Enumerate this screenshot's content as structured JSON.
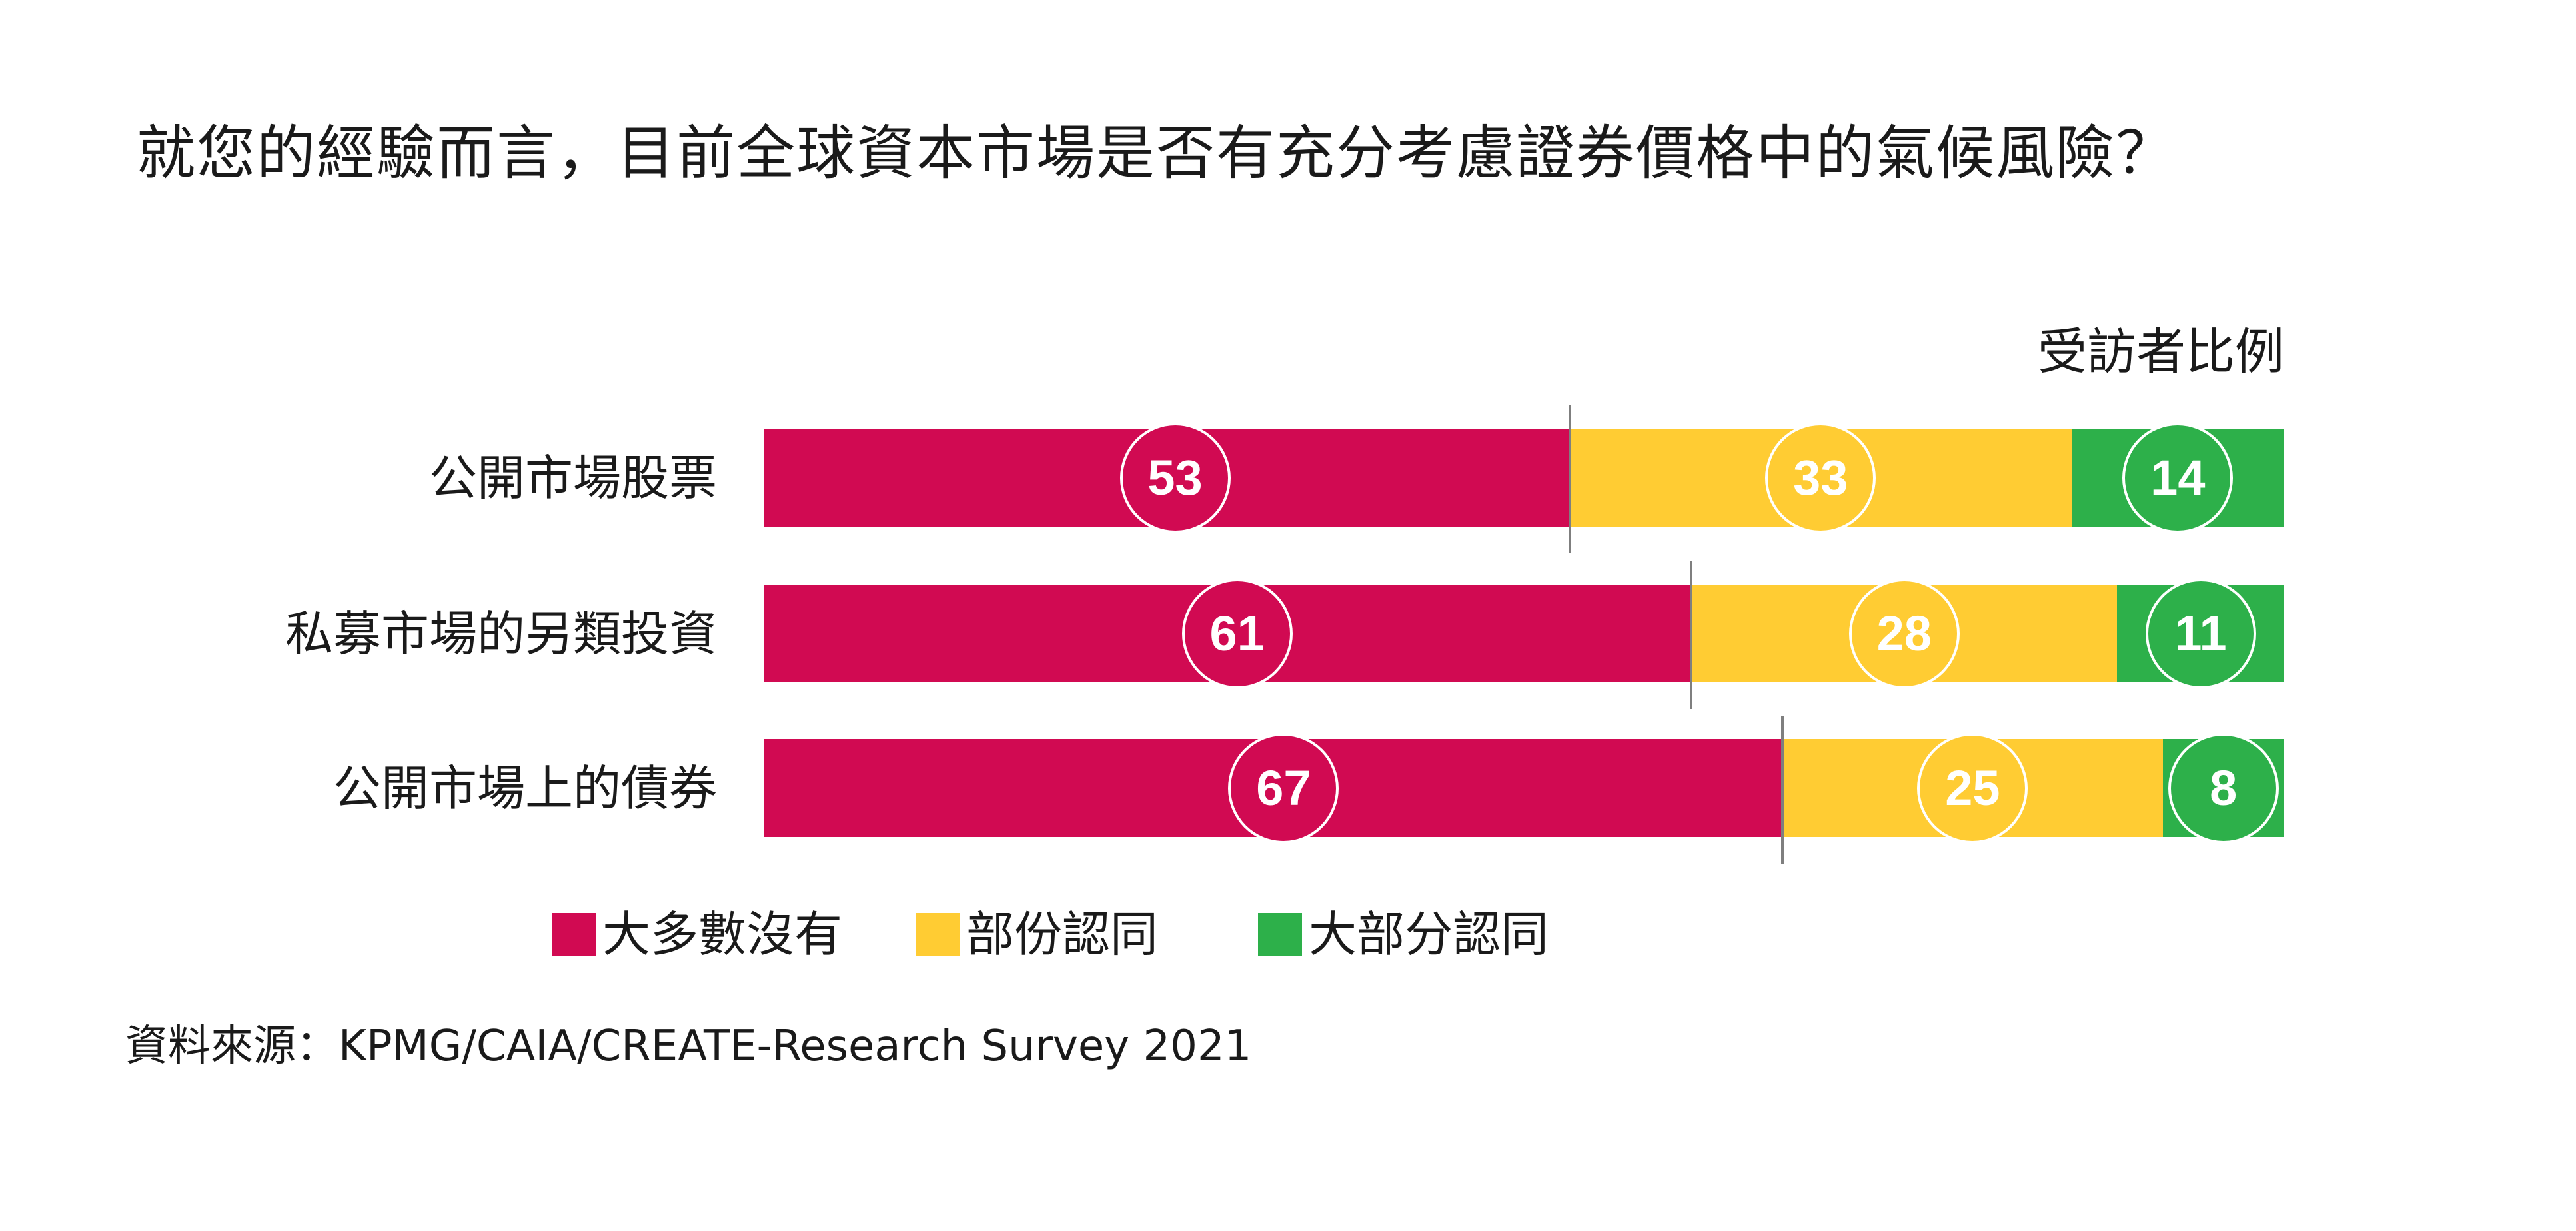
{
  "title": "就您的經驗而言，目前全球資本市場是否有充分考慮證券價格中的氣候風險？",
  "unit_label": "受訪者比例",
  "colors": {
    "mostly_no": "#D10A52",
    "partially_agree": "#FFCC33",
    "mostly_agree": "#2DB04A",
    "divider": "#7F7F7F"
  },
  "rows": [
    {
      "label": "公開市場股票",
      "values": [
        "53",
        "33",
        "14"
      ]
    },
    {
      "label": "私募市場的另類投資",
      "values": [
        "61",
        "28",
        "11"
      ]
    },
    {
      "label": "公開市場上的債券",
      "values": [
        "67",
        "25",
        "8"
      ]
    }
  ],
  "legend": [
    {
      "label": "大多數沒有",
      "color": "#D10A52"
    },
    {
      "label": "部份認同",
      "color": "#FFCC33"
    },
    {
      "label": "大部分認同",
      "color": "#2DB04A"
    }
  ],
  "source": "資料來源：KPMG/CAIA/CREATE-Research Survey 2021",
  "chart_data": {
    "type": "bar",
    "orientation": "horizontal",
    "stacked": true,
    "title": "就您的經驗而言，目前全球資本市場是否有充分考慮證券價格中的氣候風險？",
    "xlabel": "受訪者比例",
    "ylabel": "",
    "xlim": [
      0,
      100
    ],
    "grid": false,
    "legend_position": "bottom",
    "categories": [
      "公開市場股票",
      "私募市場的另類投資",
      "公開市場上的債券"
    ],
    "series": [
      {
        "name": "大多數沒有",
        "color": "#D10A52",
        "values": [
          53,
          61,
          67
        ]
      },
      {
        "name": "部份認同",
        "color": "#FFCC33",
        "values": [
          33,
          28,
          25
        ]
      },
      {
        "name": "大部分認同",
        "color": "#2DB04A",
        "values": [
          14,
          11,
          8
        ]
      }
    ],
    "annotations": [
      "資料來源：KPMG/CAIA/CREATE-Research Survey 2021"
    ]
  }
}
